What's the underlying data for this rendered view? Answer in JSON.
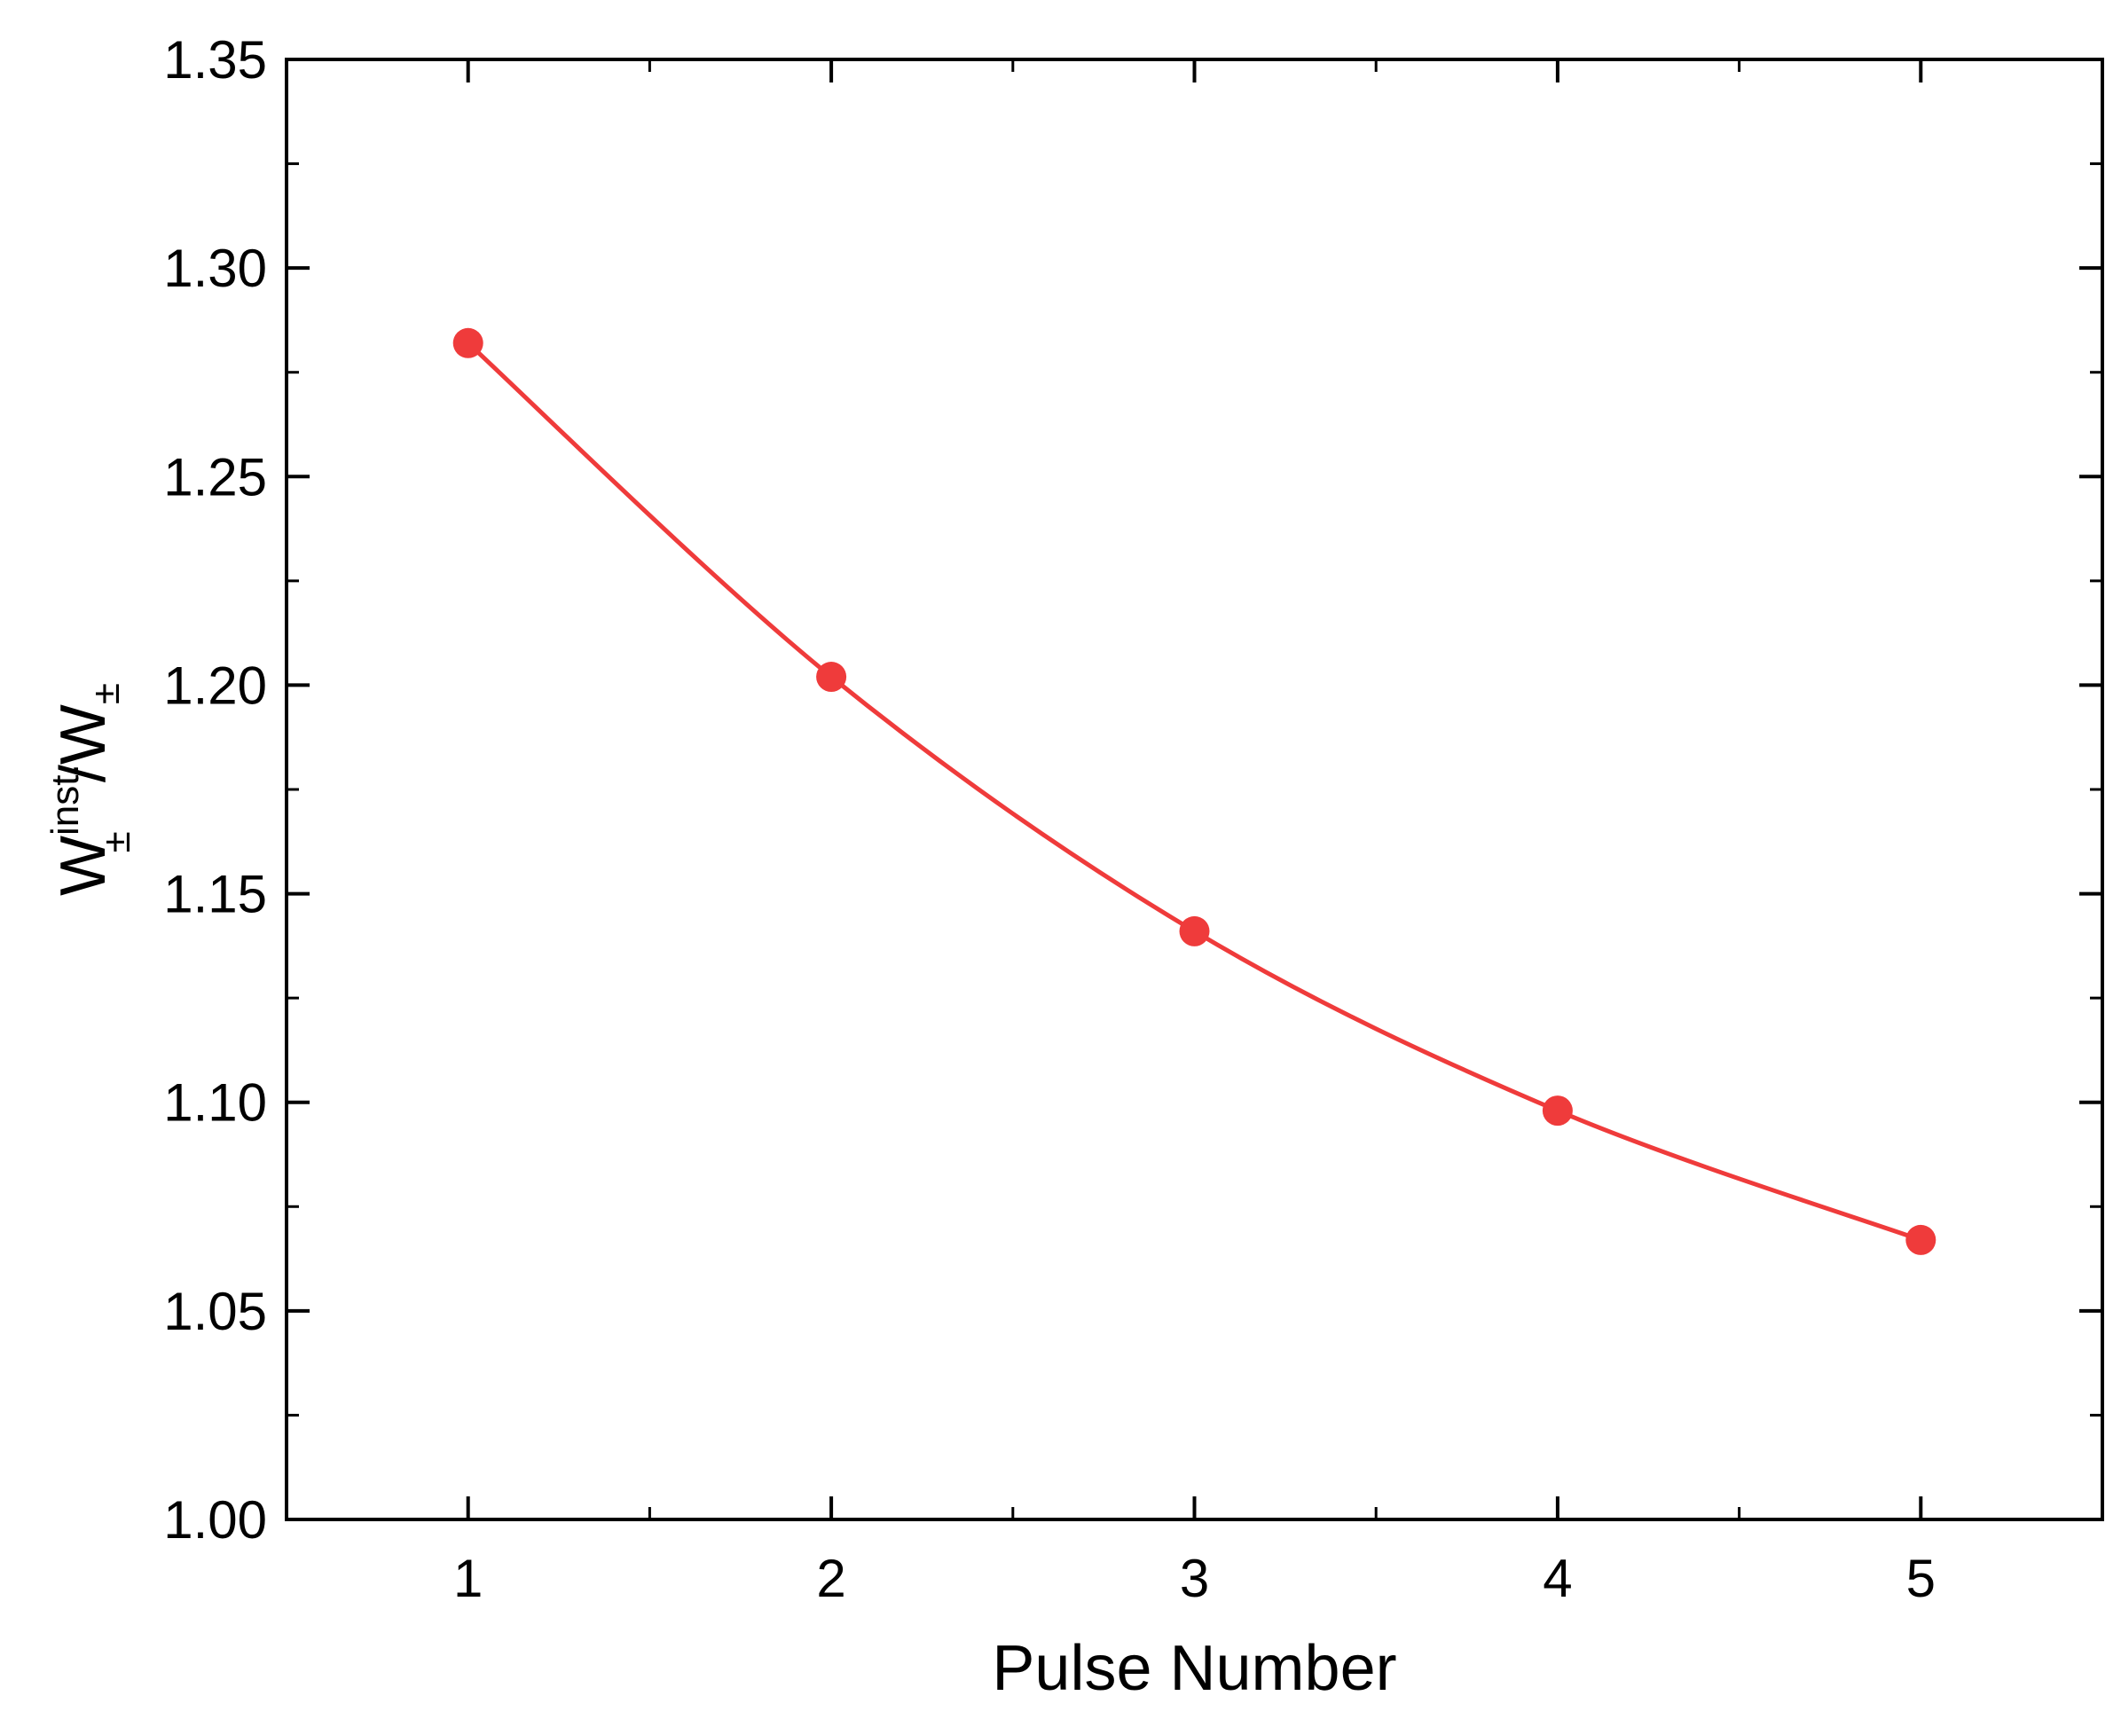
{
  "chart_data": {
    "type": "line",
    "title": "",
    "xlabel": "Pulse Number",
    "ylabel": {
      "base": "W",
      "superscript": "inst.",
      "subscript": "±",
      "separator": "/",
      "denominator_base": "W",
      "denominator_subscript": "±"
    },
    "xlim": [
      0.5,
      5.5
    ],
    "ylim": [
      1.0,
      1.35
    ],
    "xticks": [
      1,
      2,
      3,
      4,
      5
    ],
    "xtick_labels": [
      "1",
      "2",
      "3",
      "4",
      "5"
    ],
    "yticks": [
      1.0,
      1.05,
      1.1,
      1.15,
      1.2,
      1.25,
      1.3,
      1.35
    ],
    "ytick_labels": [
      "1.00",
      "1.05",
      "1.10",
      "1.15",
      "1.20",
      "1.25",
      "1.30",
      "1.35"
    ],
    "grid": false,
    "series": [
      {
        "color": "#ef3b3b",
        "markers": "circle",
        "x": [
          1,
          2,
          3,
          4,
          5
        ],
        "values": [
          1.282,
          1.202,
          1.141,
          1.098,
          1.067
        ]
      }
    ]
  }
}
